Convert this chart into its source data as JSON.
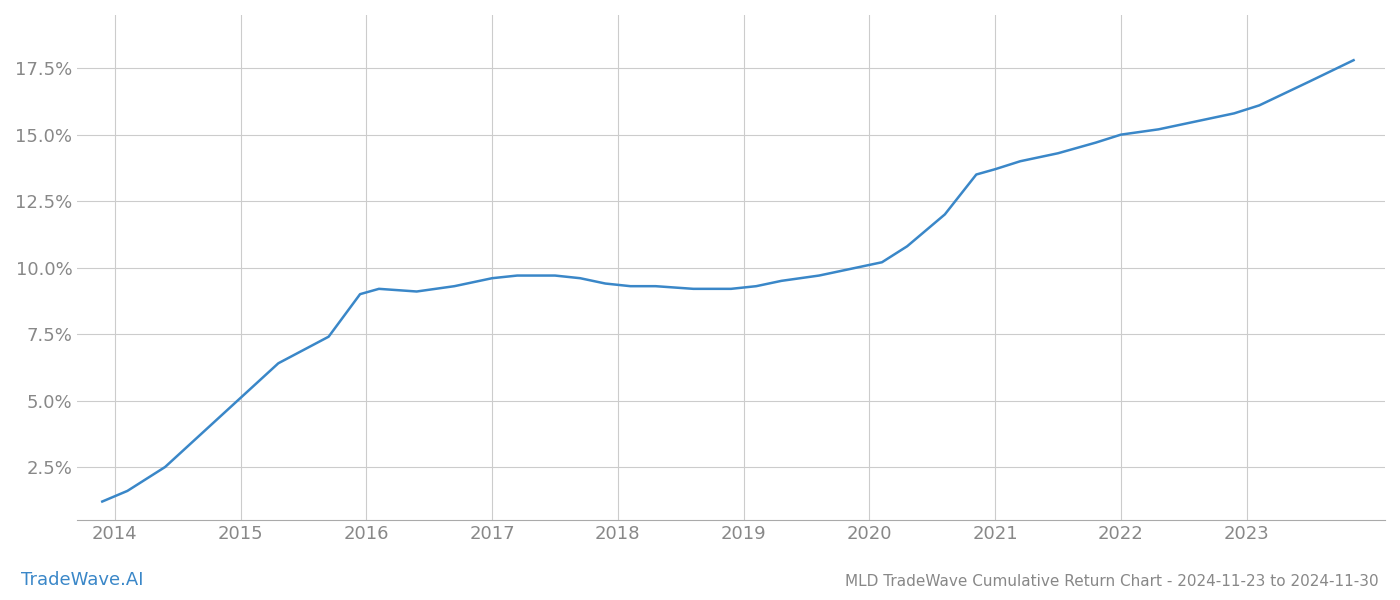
{
  "x_values": [
    2013.9,
    2014.1,
    2014.4,
    2014.7,
    2015.0,
    2015.3,
    2015.7,
    2015.95,
    2016.1,
    2016.4,
    2016.7,
    2017.0,
    2017.2,
    2017.5,
    2017.7,
    2017.9,
    2018.1,
    2018.3,
    2018.6,
    2018.9,
    2019.1,
    2019.3,
    2019.6,
    2019.9,
    2020.1,
    2020.3,
    2020.6,
    2020.85,
    2021.0,
    2021.2,
    2021.5,
    2021.8,
    2022.0,
    2022.3,
    2022.6,
    2022.9,
    2023.1,
    2023.5,
    2023.85
  ],
  "y_values": [
    0.012,
    0.016,
    0.025,
    0.038,
    0.051,
    0.064,
    0.074,
    0.09,
    0.092,
    0.091,
    0.093,
    0.096,
    0.097,
    0.097,
    0.096,
    0.094,
    0.093,
    0.093,
    0.092,
    0.092,
    0.093,
    0.095,
    0.097,
    0.1,
    0.102,
    0.108,
    0.12,
    0.135,
    0.137,
    0.14,
    0.143,
    0.147,
    0.15,
    0.152,
    0.155,
    0.158,
    0.161,
    0.17,
    0.178
  ],
  "line_color": "#3a87c8",
  "line_width": 1.8,
  "background_color": "#ffffff",
  "grid_color": "#cccccc",
  "tick_color": "#888888",
  "title": "MLD TradeWave Cumulative Return Chart - 2024-11-23 to 2024-11-30",
  "watermark": "TradeWave.AI",
  "watermark_color": "#3a87c8",
  "xlim": [
    2013.7,
    2024.1
  ],
  "ylim": [
    0.005,
    0.195
  ],
  "yticks": [
    0.025,
    0.05,
    0.075,
    0.1,
    0.125,
    0.15,
    0.175
  ],
  "xticks": [
    2014,
    2015,
    2016,
    2017,
    2018,
    2019,
    2020,
    2021,
    2022,
    2023
  ],
  "tick_fontsize": 13,
  "title_fontsize": 11,
  "watermark_fontsize": 13
}
